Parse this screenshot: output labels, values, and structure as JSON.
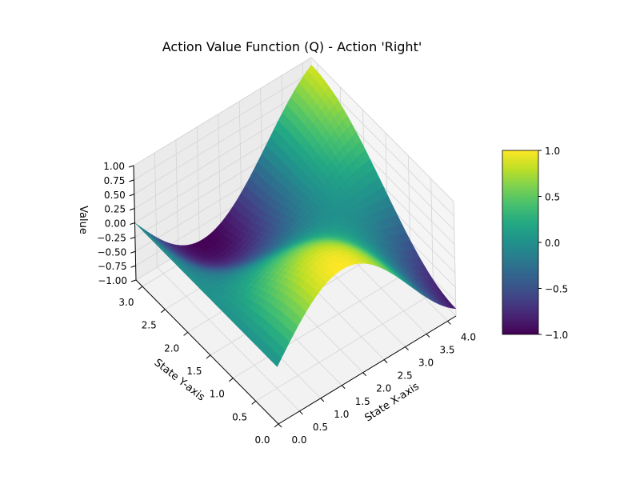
{
  "chart_data": {
    "type": "surface3d",
    "title": "Action Value Function (Q) - Action 'Right'",
    "xlabel": "State X-axis",
    "ylabel": "State Y-axis",
    "zlabel": "Value",
    "x_range": [
      0,
      4.2
    ],
    "y_range": [
      0,
      3.14
    ],
    "z_range": [
      -1.0,
      1.0
    ],
    "x_ticks": [
      "0.0",
      "0.5",
      "1.0",
      "1.5",
      "2.0",
      "2.5",
      "3.0",
      "3.5",
      "4.0"
    ],
    "y_ticks": [
      "0.0",
      "0.5",
      "1.0",
      "1.5",
      "2.0",
      "2.5",
      "3.0"
    ],
    "z_ticks": [
      "−1.00",
      "−0.75",
      "−0.50",
      "−0.25",
      "0.00",
      "0.25",
      "0.50",
      "0.75",
      "1.00"
    ],
    "function": "Q(x, y) = sin(x) * cos(y)",
    "colormap": "viridis",
    "colorbar": {
      "ticks": [
        "−1.0",
        "−0.5",
        "0.0",
        "0.5",
        "1.0"
      ],
      "range": [
        -1.0,
        1.0
      ]
    },
    "view": {
      "elevation_deg": 50,
      "azimuth_deg": 45
    },
    "grid": true,
    "samples": [
      {
        "x": 0.0,
        "y": 0.0,
        "z": 0.0
      },
      {
        "x": 1.57,
        "y": 0.0,
        "z": 1.0
      },
      {
        "x": 1.57,
        "y": 3.14,
        "z": -1.0
      },
      {
        "x": 4.2,
        "y": 0.0,
        "z": -0.87
      },
      {
        "x": 4.2,
        "y": 3.14,
        "z": 0.87
      }
    ]
  }
}
